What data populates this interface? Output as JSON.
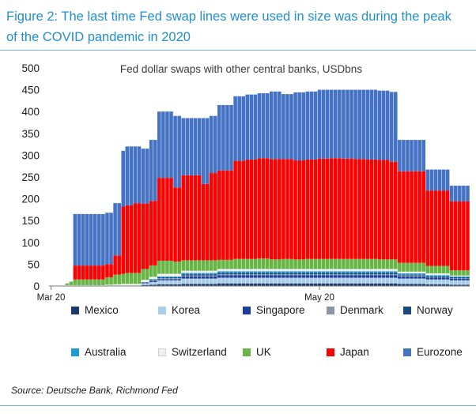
{
  "figure": {
    "title_line1": "Figure 2: The last time Fed swap lines were used in size was during the peak",
    "title_line2": "of the COVID pandemic in 2020",
    "source": "Source: Deutsche Bank, Richmond Fed"
  },
  "colors": {
    "title": "#1f8fce",
    "Mexico": "#1b3a6b",
    "Korea": "#a9cdea",
    "Singapore": "#1e3f99",
    "Denmark": "#8a96a8",
    "Norway": "#1a4a7a",
    "Australia": "#1e9ad6",
    "Switzerland": "#f0f0f0",
    "UK": "#66b545",
    "Japan": "#ff0000",
    "Eurozone": "#4472c4"
  },
  "chart_data": {
    "type": "bar",
    "stacked": true,
    "title": "Fed dollar swaps with other central banks, USDbns",
    "xlabel": "",
    "ylabel": "",
    "ylim": [
      0,
      500
    ],
    "yticks": [
      0,
      50,
      100,
      150,
      200,
      250,
      300,
      350,
      400,
      450,
      500
    ],
    "xtick_labels": [
      {
        "label": "Mar 20",
        "index": 0
      },
      {
        "label": "May 20",
        "index": 67
      }
    ],
    "grid": false,
    "legend_position": "bottom",
    "series_order": [
      "Mexico",
      "Korea",
      "Singapore",
      "Denmark",
      "Norway",
      "Australia",
      "Switzerland",
      "UK",
      "Japan",
      "Eurozone"
    ],
    "segments": [
      {
        "start": 0,
        "end": 3,
        "Mexico": 0,
        "Korea": 0,
        "Singapore": 0,
        "Denmark": 0,
        "Norway": 0,
        "Australia": 0,
        "Switzerland": 0,
        "UK": 0,
        "Japan": 0,
        "Eurozone": 0
      },
      {
        "start": 4,
        "end": 4,
        "Mexico": 0,
        "Korea": 0,
        "Singapore": 0,
        "Denmark": 0,
        "Norway": 0,
        "Australia": 0,
        "Switzerland": 2,
        "UK": 4,
        "Japan": 0,
        "Eurozone": 0
      },
      {
        "start": 5,
        "end": 5,
        "Mexico": 0,
        "Korea": 0,
        "Singapore": 0,
        "Denmark": 0,
        "Norway": 0,
        "Australia": 0,
        "Switzerland": 2,
        "UK": 8,
        "Japan": 0,
        "Eurozone": 0
      },
      {
        "start": 6,
        "end": 13,
        "Mexico": 0,
        "Korea": 0,
        "Singapore": 0,
        "Denmark": 0,
        "Norway": 0,
        "Australia": 0,
        "Switzerland": 2,
        "UK": 13,
        "Japan": 32,
        "Eurozone": 118
      },
      {
        "start": 14,
        "end": 15,
        "Mexico": 0,
        "Korea": 0,
        "Singapore": 0,
        "Denmark": 0,
        "Norway": 0,
        "Australia": 0,
        "Switzerland": 3,
        "UK": 17,
        "Japan": 30,
        "Eurozone": 118
      },
      {
        "start": 16,
        "end": 17,
        "Mexico": 0,
        "Korea": 0,
        "Singapore": 0,
        "Denmark": 0,
        "Norway": 0,
        "Australia": 0,
        "Switzerland": 4,
        "UK": 22,
        "Japan": 44,
        "Eurozone": 120
      },
      {
        "start": 18,
        "end": 18,
        "Mexico": 0,
        "Korea": 0,
        "Singapore": 0,
        "Denmark": 0,
        "Norway": 0,
        "Australia": 0,
        "Switzerland": 5,
        "UK": 23,
        "Japan": 154,
        "Eurozone": 128
      },
      {
        "start": 19,
        "end": 20,
        "Mexico": 0,
        "Korea": 0,
        "Singapore": 0,
        "Denmark": 0,
        "Norway": 0,
        "Australia": 0,
        "Switzerland": 5,
        "UK": 25,
        "Japan": 155,
        "Eurozone": 135
      },
      {
        "start": 21,
        "end": 22,
        "Mexico": 0,
        "Korea": 0,
        "Singapore": 0,
        "Denmark": 0,
        "Norway": 0,
        "Australia": 0,
        "Switzerland": 5,
        "UK": 25,
        "Japan": 160,
        "Eurozone": 130
      },
      {
        "start": 23,
        "end": 24,
        "Mexico": 2,
        "Korea": 3,
        "Singapore": 1,
        "Denmark": 1,
        "Norway": 1,
        "Australia": 1,
        "Switzerland": 5,
        "UK": 25,
        "Japan": 150,
        "Eurozone": 126
      },
      {
        "start": 25,
        "end": 26,
        "Mexico": 3,
        "Korea": 6,
        "Singapore": 2,
        "Denmark": 1,
        "Norway": 2,
        "Australia": 2,
        "Switzerland": 5,
        "UK": 26,
        "Japan": 148,
        "Eurozone": 140
      },
      {
        "start": 27,
        "end": 30,
        "Mexico": 4,
        "Korea": 9,
        "Singapore": 3,
        "Denmark": 2,
        "Norway": 2,
        "Australia": 2,
        "Switzerland": 6,
        "UK": 30,
        "Japan": 190,
        "Eurozone": 152
      },
      {
        "start": 31,
        "end": 32,
        "Mexico": 4,
        "Korea": 9,
        "Singapore": 3,
        "Denmark": 2,
        "Norway": 2,
        "Australia": 2,
        "Switzerland": 6,
        "UK": 28,
        "Japan": 170,
        "Eurozone": 164
      },
      {
        "start": 33,
        "end": 37,
        "Mexico": 5,
        "Korea": 12,
        "Singapore": 5,
        "Denmark": 2,
        "Norway": 3,
        "Australia": 3,
        "Switzerland": 5,
        "UK": 24,
        "Japan": 195,
        "Eurozone": 131
      },
      {
        "start": 38,
        "end": 39,
        "Mexico": 5,
        "Korea": 12,
        "Singapore": 5,
        "Denmark": 2,
        "Norway": 3,
        "Australia": 3,
        "Switzerland": 5,
        "UK": 24,
        "Japan": 175,
        "Eurozone": 151
      },
      {
        "start": 40,
        "end": 41,
        "Mexico": 5,
        "Korea": 12,
        "Singapore": 5,
        "Denmark": 2,
        "Norway": 3,
        "Australia": 3,
        "Switzerland": 5,
        "UK": 24,
        "Japan": 200,
        "Eurozone": 131
      },
      {
        "start": 42,
        "end": 45,
        "Mexico": 6,
        "Korea": 13,
        "Singapore": 6,
        "Denmark": 2,
        "Norway": 3,
        "Australia": 4,
        "Switzerland": 5,
        "UK": 21,
        "Japan": 205,
        "Eurozone": 150
      },
      {
        "start": 46,
        "end": 48,
        "Mexico": 6,
        "Korea": 13,
        "Singapore": 6,
        "Denmark": 2,
        "Norway": 3,
        "Australia": 4,
        "Switzerland": 5,
        "UK": 23,
        "Japan": 225,
        "Eurozone": 148
      },
      {
        "start": 49,
        "end": 51,
        "Mexico": 6,
        "Korea": 13,
        "Singapore": 6,
        "Denmark": 2,
        "Norway": 3,
        "Australia": 4,
        "Switzerland": 5,
        "UK": 23,
        "Japan": 228,
        "Eurozone": 149
      },
      {
        "start": 52,
        "end": 54,
        "Mexico": 6,
        "Korea": 13,
        "Singapore": 6,
        "Denmark": 2,
        "Norway": 3,
        "Australia": 4,
        "Switzerland": 5,
        "UK": 24,
        "Japan": 230,
        "Eurozone": 149
      },
      {
        "start": 55,
        "end": 57,
        "Mexico": 6,
        "Korea": 13,
        "Singapore": 6,
        "Denmark": 2,
        "Norway": 3,
        "Australia": 4,
        "Switzerland": 5,
        "UK": 22,
        "Japan": 230,
        "Eurozone": 155
      },
      {
        "start": 58,
        "end": 60,
        "Mexico": 6,
        "Korea": 13,
        "Singapore": 6,
        "Denmark": 2,
        "Norway": 3,
        "Australia": 4,
        "Switzerland": 5,
        "UK": 23,
        "Japan": 229,
        "Eurozone": 149
      },
      {
        "start": 61,
        "end": 63,
        "Mexico": 6,
        "Korea": 13,
        "Singapore": 6,
        "Denmark": 2,
        "Norway": 3,
        "Australia": 4,
        "Switzerland": 5,
        "UK": 22,
        "Japan": 227,
        "Eurozone": 156
      },
      {
        "start": 64,
        "end": 66,
        "Mexico": 6,
        "Korea": 13,
        "Singapore": 6,
        "Denmark": 2,
        "Norway": 3,
        "Australia": 4,
        "Switzerland": 5,
        "UK": 23,
        "Japan": 228,
        "Eurozone": 156
      },
      {
        "start": 67,
        "end": 69,
        "Mexico": 6,
        "Korea": 13,
        "Singapore": 6,
        "Denmark": 2,
        "Norway": 3,
        "Australia": 4,
        "Switzerland": 5,
        "UK": 23,
        "Japan": 230,
        "Eurozone": 158
      },
      {
        "start": 70,
        "end": 72,
        "Mexico": 6,
        "Korea": 13,
        "Singapore": 6,
        "Denmark": 2,
        "Norway": 3,
        "Australia": 4,
        "Switzerland": 5,
        "UK": 23,
        "Japan": 231,
        "Eurozone": 157
      },
      {
        "start": 73,
        "end": 75,
        "Mexico": 6,
        "Korea": 13,
        "Singapore": 6,
        "Denmark": 2,
        "Norway": 3,
        "Australia": 4,
        "Switzerland": 5,
        "UK": 23,
        "Japan": 230,
        "Eurozone": 158
      },
      {
        "start": 76,
        "end": 78,
        "Mexico": 6,
        "Korea": 13,
        "Singapore": 6,
        "Denmark": 2,
        "Norway": 3,
        "Australia": 4,
        "Switzerland": 5,
        "UK": 23,
        "Japan": 229,
        "Eurozone": 159
      },
      {
        "start": 79,
        "end": 81,
        "Mexico": 6,
        "Korea": 13,
        "Singapore": 6,
        "Denmark": 2,
        "Norway": 3,
        "Australia": 4,
        "Switzerland": 5,
        "UK": 23,
        "Japan": 228,
        "Eurozone": 160
      },
      {
        "start": 82,
        "end": 84,
        "Mexico": 6,
        "Korea": 13,
        "Singapore": 6,
        "Denmark": 2,
        "Norway": 3,
        "Australia": 4,
        "Switzerland": 5,
        "UK": 22,
        "Japan": 228,
        "Eurozone": 159
      },
      {
        "start": 85,
        "end": 86,
        "Mexico": 6,
        "Korea": 13,
        "Singapore": 6,
        "Denmark": 2,
        "Norway": 3,
        "Australia": 4,
        "Switzerland": 5,
        "UK": 22,
        "Japan": 224,
        "Eurozone": 160
      },
      {
        "start": 87,
        "end": 93,
        "Mexico": 5,
        "Korea": 12,
        "Singapore": 5,
        "Denmark": 2,
        "Norway": 2,
        "Australia": 3,
        "Switzerland": 4,
        "UK": 20,
        "Japan": 210,
        "Eurozone": 72
      },
      {
        "start": 94,
        "end": 99,
        "Mexico": 4,
        "Korea": 11,
        "Singapore": 4,
        "Denmark": 1,
        "Norway": 2,
        "Australia": 3,
        "Switzerland": 4,
        "UK": 17,
        "Japan": 173,
        "Eurozone": 48
      },
      {
        "start": 100,
        "end": 104,
        "Mexico": 3,
        "Korea": 10,
        "Singapore": 4,
        "Denmark": 1,
        "Norway": 2,
        "Australia": 2,
        "Switzerland": 2,
        "UK": 12,
        "Japan": 158,
        "Eurozone": 36
      }
    ]
  }
}
